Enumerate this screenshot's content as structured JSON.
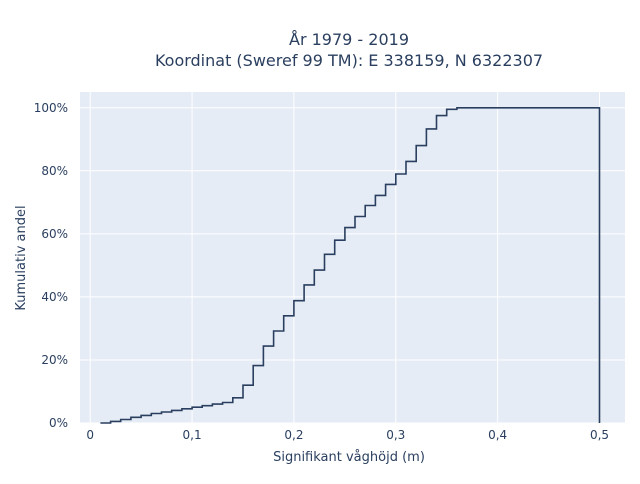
{
  "chart_data": {
    "type": "line",
    "line_shape": "step",
    "title_lines": [
      "År 1979 - 2019",
      "Koordinat (Sweref 99 TM): E 338159, N 6322307"
    ],
    "xlabel": "Signifikant våghöjd (m)",
    "ylabel": "Kumulativ andel",
    "xlim": [
      -0.01,
      0.525
    ],
    "ylim": [
      0,
      1.05
    ],
    "xticks": [
      {
        "value": 0,
        "label": "0"
      },
      {
        "value": 0.1,
        "label": "0,1"
      },
      {
        "value": 0.2,
        "label": "0,2"
      },
      {
        "value": 0.3,
        "label": "0,3"
      },
      {
        "value": 0.4,
        "label": "0,4"
      },
      {
        "value": 0.5,
        "label": "0,5"
      }
    ],
    "yticks": [
      {
        "value": 0,
        "label": "0%"
      },
      {
        "value": 0.2,
        "label": "20%"
      },
      {
        "value": 0.4,
        "label": "40%"
      },
      {
        "value": 0.6,
        "label": "60%"
      },
      {
        "value": 0.8,
        "label": "80%"
      },
      {
        "value": 1.0,
        "label": "100%"
      }
    ],
    "grid": true,
    "colors": {
      "background": "#e5ecf6",
      "grid": "#ffffff",
      "line": "#2a3f5f",
      "text": "#2a3f5f"
    },
    "series": [
      {
        "x": [
          0.01,
          0.02,
          0.03,
          0.04,
          0.05,
          0.06,
          0.07,
          0.08,
          0.09,
          0.1,
          0.11,
          0.12,
          0.13,
          0.14,
          0.15,
          0.16,
          0.17,
          0.18,
          0.19,
          0.2,
          0.21,
          0.22,
          0.23,
          0.24,
          0.25,
          0.26,
          0.27,
          0.28,
          0.29,
          0.3,
          0.31,
          0.32,
          0.33,
          0.34,
          0.35,
          0.36,
          0.43,
          0.5,
          0.5
        ],
        "y": [
          0.0,
          0.005,
          0.011,
          0.018,
          0.024,
          0.03,
          0.035,
          0.04,
          0.045,
          0.05,
          0.055,
          0.06,
          0.065,
          0.08,
          0.12,
          0.182,
          0.244,
          0.292,
          0.34,
          0.388,
          0.438,
          0.485,
          0.535,
          0.58,
          0.62,
          0.655,
          0.69,
          0.722,
          0.757,
          0.79,
          0.83,
          0.88,
          0.933,
          0.975,
          0.995,
          1.0,
          1.0,
          1.0,
          0.0
        ]
      }
    ]
  }
}
